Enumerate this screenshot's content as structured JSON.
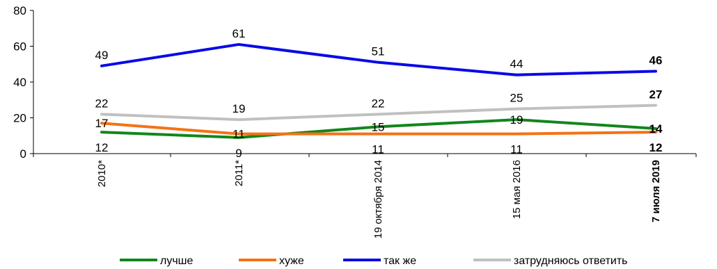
{
  "chart_data": {
    "type": "line",
    "categories": [
      "2010*",
      "2011*",
      "19 октября 2014",
      "15 мая 2016",
      "7 июля 2019"
    ],
    "bold_categories": [
      "7 июля 2019"
    ],
    "ylim": [
      0,
      80
    ],
    "yticks": [
      0,
      20,
      40,
      60,
      80
    ],
    "grid": false,
    "legend_position": "bottom",
    "series": [
      {
        "name": "лучше",
        "color": "#12861C",
        "values": [
          12,
          9,
          15,
          19,
          14
        ],
        "labels": [
          "12",
          "9",
          "15",
          "19",
          "14"
        ]
      },
      {
        "name": "хуже",
        "color": "#F47216",
        "values": [
          17,
          11,
          11,
          11,
          12
        ],
        "labels": [
          "17",
          "11",
          "11",
          "11",
          "12"
        ]
      },
      {
        "name": "так же",
        "color": "#0A0AE6",
        "values": [
          49,
          61,
          51,
          44,
          46
        ],
        "labels": [
          "49",
          "61",
          "51",
          "44",
          "46"
        ]
      },
      {
        "name": "затрудняюсь ответить",
        "color": "#C0C0C0",
        "values": [
          22,
          19,
          22,
          25,
          27
        ],
        "labels": [
          "22",
          "19",
          "22",
          "25",
          "27"
        ]
      }
    ]
  }
}
